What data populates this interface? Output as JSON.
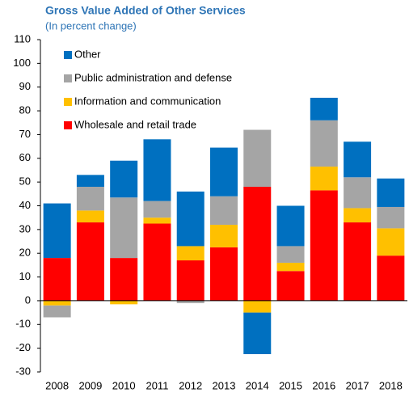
{
  "chart_data": {
    "type": "stacked_bar",
    "title": "Gross Value Added of Other Services",
    "subtitle": "(In percent change)",
    "categories": [
      "2008",
      "2009",
      "2010",
      "2011",
      "2012",
      "2013",
      "2014",
      "2015",
      "2016",
      "2017",
      "2018"
    ],
    "series": [
      {
        "name": "Wholesale and retail trade",
        "color": "#ff0000",
        "values": [
          18,
          33,
          18,
          32.5,
          17,
          22.5,
          48,
          12.5,
          46.5,
          33,
          19
        ]
      },
      {
        "name": "Information and communication",
        "color": "#ffc000",
        "values": [
          -2,
          5,
          -1.5,
          2.5,
          6,
          9.5,
          -5,
          3.5,
          10,
          6,
          11.5
        ]
      },
      {
        "name": "Public administration and defense",
        "color": "#a5a5a5",
        "values": [
          -5,
          10,
          25.5,
          7,
          -1,
          12,
          24,
          7,
          19.5,
          13,
          9
        ]
      },
      {
        "name": "Other",
        "color": "#0070c0",
        "values": [
          23,
          5,
          15.5,
          26,
          23,
          20.5,
          -17.5,
          17,
          9.5,
          15,
          12
        ]
      }
    ],
    "ylim": [
      -30,
      110
    ],
    "yticks": [
      -30,
      -20,
      -10,
      0,
      10,
      20,
      30,
      40,
      50,
      60,
      70,
      80,
      90,
      100,
      110
    ]
  }
}
